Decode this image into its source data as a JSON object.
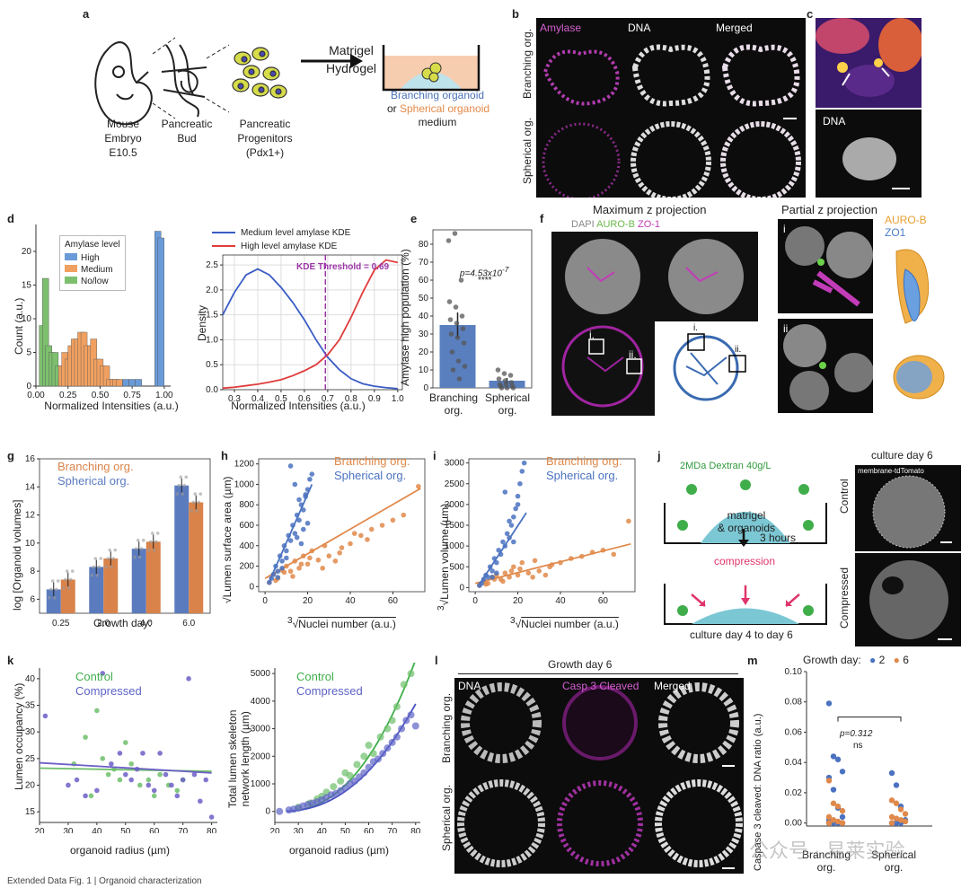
{
  "panel_letters": {
    "a": "a",
    "b": "b",
    "c": "c",
    "d": "d",
    "e": "e",
    "f": "f",
    "g": "g",
    "h": "h",
    "i": "i",
    "j": "j",
    "k": "k",
    "l": "l",
    "m": "m"
  },
  "panel_a": {
    "mouse_label": "Mouse\nEmbryo\nE10.5",
    "bud_label": "Pancreatic\nBud",
    "prog_label": "Pancreatic\nProgenitors\n(Pdx1+)",
    "matrigel_label": "Matrigel\nHydrogel",
    "branching_medium": "Branching organoid",
    "or_text": "or",
    "spherical_medium": "Spherical organoid",
    "medium_text": "medium",
    "colors": {
      "branching": "#4a72b8",
      "spherical": "#e58a4a"
    }
  },
  "panel_b": {
    "amylase": "Amylase",
    "dna": "DNA",
    "merged": "Merged",
    "row1": "Branching org.",
    "row2": "Spherical org."
  },
  "panel_c": {
    "dna": "DNA"
  },
  "panel_d": {
    "hist_ylabel": "Count (a.u.)",
    "hist_xlabel": "Normalized Intensities (a.u.)",
    "legend_title": "Amylase level",
    "legend": [
      "High",
      "Medium",
      "No/low"
    ],
    "kde_ylabel": "Density",
    "kde_xlabel": "Normalized Intensities (a.u.)",
    "kde_legend": [
      "Medium level amylase KDE",
      "High level amylase KDE"
    ],
    "threshold_label": "KDE Threshold = 0.69"
  },
  "panel_e": {
    "ylabel": "Amylase high population (%)",
    "pvalue": "p=4.53x10",
    "pexp": "-7",
    "stars": "****",
    "cat1": "Branching\norg.",
    "cat2": "Spherical\norg."
  },
  "panel_f": {
    "title": "Maximum z projection",
    "channels": [
      "DAPI",
      "AURO-B",
      "ZO-1"
    ],
    "roi1": "i.",
    "roi2": "ii."
  },
  "panel_partial": {
    "title": "Partial z projection",
    "legend": [
      "AURO-B",
      "ZO1"
    ],
    "r1": "i",
    "r2": "ii"
  },
  "panel_g": {
    "ylabel": "log [Organoid volumes]",
    "xlabel": "Growth day:",
    "legend": [
      "Branching org.",
      "Spherical org."
    ]
  },
  "panel_h": {
    "ylabel": "Lumen surface area (µm)",
    "xlabel": "Nuclei number (a.u.)",
    "legend": [
      "Branching org.",
      "Spherical org."
    ]
  },
  "panel_i": {
    "ylabel": "Lumen volume (µm)",
    "xlabel": "Nuclei number (a.u.)",
    "legend": [
      "Branching org.",
      "Spherical org."
    ]
  },
  "panel_j": {
    "dextran": "2MDa Dextran 40g/L",
    "matrigel": "matrigel\n& organoids",
    "hours": "3 hours",
    "compression": "compression",
    "culture": "culture day 4 to day 6",
    "day6": "culture day 6",
    "membrane": "membrane-tdTomato",
    "control": "Control",
    "compressed": "Compressed"
  },
  "panel_k": {
    "ylabel1": "Lumen occupancy (%)",
    "xlabel": "organoid radius (µm)",
    "ylabel2": "Total lumen skeleton\nnetwork length (µm)",
    "legend": [
      "Control",
      "Compressed"
    ]
  },
  "panel_l": {
    "title": "Growth day 6",
    "dna": "DNA",
    "casp": "Casp 3 Cleaved",
    "merged": "Merged",
    "row1": "Branching org.",
    "row2": "Spherical org."
  },
  "panel_m": {
    "legend_title": "Growth day:",
    "days": [
      "2",
      "6"
    ],
    "ylabel": "Caspase 3 cleaved: DNA ratio (a.u.)",
    "pvalue": "p=0.312",
    "ns": "ns",
    "cat1": "Branching\norg.",
    "cat2": "Spherical\norg."
  },
  "watermark": "公众号 · 易莱实验",
  "footer": "Extended Data Fig. 1 | Organoid characterization",
  "chart_data": [
    {
      "panel": "d-left",
      "type": "bar",
      "title": "",
      "xlabel": "Normalized Intensities (a.u.)",
      "ylabel": "Count (a.u.)",
      "xlim": [
        0,
        1.05
      ],
      "ylim": [
        0,
        24
      ],
      "series": [
        {
          "name": "No/low",
          "color": "#7dbf6e",
          "bins": [
            0.05,
            0.075,
            0.1,
            0.125,
            0.15,
            0.175,
            0.2
          ],
          "values": [
            9,
            16,
            6,
            5,
            5,
            3,
            1
          ]
        },
        {
          "name": "Medium",
          "color": "#f0a060",
          "bins": [
            0.2,
            0.225,
            0.25,
            0.275,
            0.3,
            0.325,
            0.35,
            0.375,
            0.4,
            0.425,
            0.45,
            0.475,
            0.5,
            0.525,
            0.55,
            0.575,
            0.6,
            0.625,
            0.65
          ],
          "values": [
            3,
            5,
            4,
            6,
            7,
            7,
            8,
            8,
            6,
            6,
            7,
            4,
            4,
            3,
            3,
            1,
            1,
            1,
            1
          ]
        },
        {
          "name": "High",
          "color": "#6a9bd8",
          "bins": [
            0.7,
            0.75,
            0.8,
            0.95,
            0.975
          ],
          "values": [
            1,
            1,
            1,
            23,
            22
          ]
        }
      ]
    },
    {
      "panel": "d-right",
      "type": "line",
      "xlabel": "Normalized Intensities (a.u.)",
      "ylabel": "Density",
      "xlim": [
        0.25,
        1.02
      ],
      "ylim": [
        0,
        2.7
      ],
      "threshold": 0.69,
      "series": [
        {
          "name": "Medium level amylase KDE",
          "color": "#3a5cc5",
          "x": [
            0.25,
            0.3,
            0.35,
            0.4,
            0.45,
            0.5,
            0.55,
            0.6,
            0.65,
            0.7,
            0.75,
            0.8,
            0.85,
            0.9,
            0.95,
            1.0
          ],
          "y": [
            1.5,
            1.95,
            2.3,
            2.42,
            2.3,
            2.05,
            1.75,
            1.4,
            1.0,
            0.65,
            0.4,
            0.22,
            0.12,
            0.07,
            0.04,
            0.02
          ]
        },
        {
          "name": "High level amylase KDE",
          "color": "#e03c3c",
          "x": [
            0.25,
            0.3,
            0.35,
            0.4,
            0.45,
            0.5,
            0.55,
            0.6,
            0.65,
            0.7,
            0.75,
            0.8,
            0.85,
            0.9,
            0.95,
            1.0
          ],
          "y": [
            0.03,
            0.05,
            0.08,
            0.11,
            0.15,
            0.2,
            0.28,
            0.38,
            0.5,
            0.7,
            1.0,
            1.45,
            1.95,
            2.4,
            2.6,
            2.55
          ]
        }
      ]
    },
    {
      "panel": "e",
      "type": "bar",
      "categories": [
        "Branching org.",
        "Spherical org."
      ],
      "values": [
        35,
        4
      ],
      "errors": [
        7,
        1.5
      ],
      "ylim": [
        0,
        88
      ],
      "ylabel": "Amylase high population (%)",
      "points": [
        [
          82,
          86,
          60,
          48,
          45,
          40,
          38,
          36,
          33,
          30,
          28,
          25,
          20,
          15,
          12,
          10,
          5
        ],
        [
          10,
          8,
          7,
          5,
          4,
          3,
          2,
          2,
          1,
          1,
          0,
          0,
          0
        ]
      ]
    },
    {
      "panel": "g",
      "type": "bar",
      "categories": [
        "0.25",
        "2.0",
        "4.0",
        "6.0"
      ],
      "ylim": [
        5,
        16
      ],
      "ylabel": "log [Organoid volumes]",
      "xlabel": "Growth day:",
      "series": [
        {
          "name": "Spherical org.",
          "color": "#5b7bbf",
          "values": [
            6.7,
            8.3,
            9.6,
            14.1
          ]
        },
        {
          "name": "Branching org.",
          "color": "#d9834a",
          "values": [
            7.4,
            8.9,
            10.1,
            12.9
          ]
        }
      ]
    },
    {
      "panel": "h",
      "type": "scatter",
      "xlabel": "Nuclei number (a.u.)",
      "ylabel": "Lumen surface area (µm)",
      "xlim": [
        -3,
        75
      ],
      "ylim": [
        -50,
        1250
      ],
      "series": [
        {
          "name": "Branching org.",
          "color": "#e0894a",
          "fit": [
            [
              0,
              80
            ],
            [
              73,
              960
            ]
          ],
          "x": [
            2,
            4,
            6,
            8,
            10,
            12,
            14,
            16,
            18,
            20,
            22,
            25,
            28,
            30,
            33,
            36,
            40,
            45,
            50,
            55,
            60,
            65,
            72,
            5,
            9,
            13,
            17,
            21,
            27,
            35,
            42,
            48
          ],
          "y": [
            40,
            120,
            80,
            160,
            200,
            150,
            250,
            180,
            300,
            220,
            350,
            260,
            400,
            300,
            250,
            380,
            420,
            500,
            560,
            600,
            650,
            700,
            980,
            60,
            140,
            100,
            220,
            280,
            180,
            330,
            520,
            460
          ]
        },
        {
          "name": "Spherical org.",
          "color": "#4a72c0",
          "fit": [
            [
              2,
              50
            ],
            [
              22,
              1000
            ]
          ],
          "x": [
            2,
            3,
            4,
            5,
            6,
            7,
            8,
            9,
            10,
            11,
            12,
            13,
            14,
            15,
            16,
            17,
            18,
            19,
            20,
            21,
            22,
            12,
            14,
            16,
            18,
            20,
            10,
            8,
            6,
            15,
            17,
            19
          ],
          "y": [
            40,
            80,
            120,
            200,
            150,
            300,
            250,
            400,
            350,
            500,
            450,
            600,
            520,
            700,
            650,
            800,
            750,
            900,
            950,
            1050,
            1100,
            1180,
            1000,
            850,
            560,
            620,
            280,
            180,
            90,
            480,
            420,
            880
          ]
        }
      ]
    },
    {
      "panel": "i",
      "type": "scatter",
      "xlabel": "Nuclei number (a.u.)",
      "ylabel": "Lumen volume (µm)",
      "xlim": [
        -3,
        75
      ],
      "ylim": [
        -100,
        3100
      ],
      "series": [
        {
          "name": "Branching org.",
          "color": "#e0894a",
          "fit": [
            [
              0,
              100
            ],
            [
              73,
              1050
            ]
          ],
          "x": [
            2,
            4,
            6,
            8,
            10,
            12,
            14,
            16,
            18,
            20,
            22,
            25,
            28,
            30,
            33,
            36,
            40,
            45,
            50,
            55,
            60,
            65,
            72,
            5,
            9,
            13,
            17,
            21,
            27,
            35
          ],
          "y": [
            50,
            150,
            100,
            250,
            300,
            200,
            350,
            250,
            500,
            300,
            600,
            350,
            650,
            400,
            300,
            550,
            600,
            700,
            750,
            850,
            900,
            800,
            1600,
            80,
            200,
            150,
            400,
            450,
            250,
            500
          ]
        },
        {
          "name": "Spherical org.",
          "color": "#4a72c0",
          "fit": [
            [
              2,
              80
            ],
            [
              24,
              1800
            ]
          ],
          "x": [
            2,
            3,
            4,
            5,
            6,
            7,
            8,
            9,
            10,
            11,
            12,
            13,
            14,
            15,
            16,
            17,
            18,
            19,
            20,
            21,
            22,
            23,
            14,
            16,
            18,
            20,
            10,
            8
          ],
          "y": [
            50,
            100,
            200,
            300,
            250,
            500,
            400,
            700,
            600,
            900,
            800,
            1100,
            1000,
            1300,
            1200,
            1500,
            1700,
            1900,
            2200,
            2500,
            2800,
            3000,
            2300,
            1600,
            1100,
            2000,
            350,
            250
          ]
        }
      ]
    },
    {
      "panel": "k-left",
      "type": "scatter",
      "xlabel": "organoid radius (µm)",
      "ylabel": "Lumen occupancy (%)",
      "xlim": [
        20,
        82
      ],
      "ylim": [
        13,
        42
      ],
      "series": [
        {
          "name": "Control",
          "color": "#6dbf6a",
          "fit": [
            [
              20,
              23.2
            ],
            [
              80,
              22.6
            ]
          ],
          "x": [
            32,
            36,
            38,
            40,
            42,
            44,
            46,
            48,
            50,
            52,
            55,
            58,
            60,
            62,
            65,
            68,
            70
          ],
          "y": [
            24,
            29,
            18,
            34,
            25,
            22,
            23,
            21,
            28,
            24,
            20,
            21,
            18,
            22,
            20,
            19,
            21
          ]
        },
        {
          "name": "Compressed",
          "color": "#6c5fc7",
          "fit": [
            [
              20,
              24.2
            ],
            [
              80,
              22.3
            ]
          ],
          "x": [
            22,
            30,
            33,
            36,
            40,
            42,
            45,
            48,
            50,
            52,
            54,
            56,
            58,
            60,
            62,
            64,
            66,
            68,
            70,
            72,
            74,
            76,
            78,
            80
          ],
          "y": [
            33,
            20,
            21,
            18,
            19,
            41,
            24,
            26,
            22,
            21,
            23,
            26,
            20,
            19,
            26,
            22,
            20,
            18,
            21,
            40,
            22,
            17,
            21,
            14
          ]
        }
      ]
    },
    {
      "panel": "k-right",
      "type": "scatter",
      "xlabel": "organoid radius (µm)",
      "ylabel": "Total lumen skeleton network length (µm)",
      "xlim": [
        20,
        82
      ],
      "ylim": [
        -400,
        5200
      ],
      "series": [
        {
          "name": "Control",
          "color": "#6dbf6a",
          "x": [
            30,
            35,
            38,
            40,
            42,
            45,
            48,
            50,
            52,
            55,
            58,
            60,
            62,
            65,
            68,
            70,
            72,
            75,
            78
          ],
          "y": [
            150,
            300,
            450,
            550,
            700,
            900,
            1100,
            1400,
            1300,
            1700,
            2000,
            2400,
            2100,
            2700,
            3000,
            3300,
            3800,
            4600,
            5000
          ]
        },
        {
          "name": "Compressed",
          "color": "#5c63c4",
          "x": [
            22,
            26,
            28,
            30,
            32,
            34,
            36,
            38,
            40,
            42,
            44,
            46,
            48,
            50,
            52,
            54,
            56,
            58,
            60,
            62,
            64,
            66,
            68,
            70,
            72,
            74,
            76,
            78,
            80
          ],
          "y": [
            0,
            50,
            80,
            120,
            200,
            250,
            300,
            350,
            420,
            500,
            600,
            650,
            750,
            850,
            1000,
            1100,
            1250,
            1400,
            1600,
            1800,
            1900,
            2100,
            2300,
            2500,
            2700,
            3000,
            3300,
            3500,
            3100
          ]
        }
      ]
    },
    {
      "panel": "m",
      "type": "scatter",
      "categories": [
        "Branching org.",
        "Spherical org."
      ],
      "ylabel": "Caspase 3 cleaved: DNA ratio (a.u.)",
      "ylim": [
        -0.002,
        0.1
      ],
      "series": [
        {
          "name": "2",
          "color": "#4a72c0",
          "values": [
            [
              0.079,
              0.044,
              0.042,
              0.034,
              0.03,
              0.022,
              0.01,
              0.004,
              0.002,
              0.0,
              0.0,
              0.0,
              0.0
            ],
            [
              0.033,
              0.025,
              0.011,
              0.002,
              0.0,
              0.0,
              0.0
            ]
          ]
        },
        {
          "name": "6",
          "color": "#e0894a",
          "values": [
            [
              0.028,
              0.013,
              0.011,
              0.008,
              0.004,
              0.002,
              0.001,
              0.0,
              0.0
            ],
            [
              0.015,
              0.013,
              0.009,
              0.006,
              0.004,
              0.003,
              0.002,
              0.001,
              0.0
            ]
          ]
        }
      ]
    }
  ]
}
